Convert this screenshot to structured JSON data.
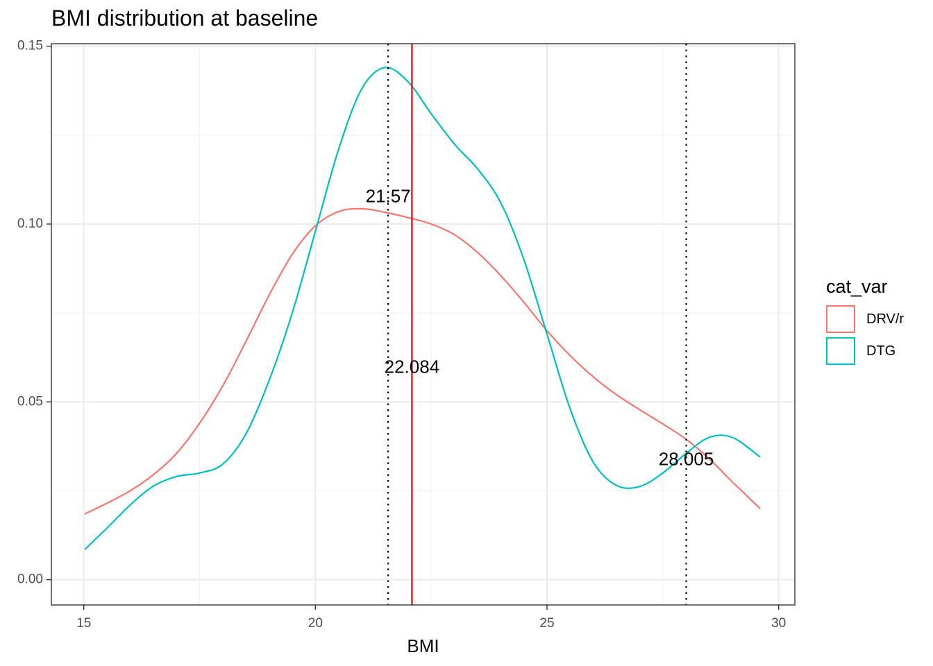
{
  "chart_data": {
    "type": "line",
    "title": "BMI distribution at baseline",
    "xlabel": "BMI",
    "ylabel": "",
    "xlim": [
      14.3,
      30.35
    ],
    "ylim": [
      -0.0071,
      0.1507
    ],
    "x_ticks": [
      15,
      20,
      25,
      30
    ],
    "x_tick_labels": [
      "15",
      "20",
      "25",
      "30"
    ],
    "y_ticks": [
      0.0,
      0.05,
      0.1,
      0.15
    ],
    "y_tick_labels": [
      "0.00",
      "0.05",
      "0.10",
      "0.15"
    ],
    "grid": true,
    "legend": {
      "title": "cat_var",
      "position": "right"
    },
    "series": [
      {
        "name": "DRV/r",
        "color": "#F8766D",
        "points": [
          [
            15.02,
            0.0185
          ],
          [
            15.5,
            0.0215
          ],
          [
            16,
            0.025
          ],
          [
            16.5,
            0.0295
          ],
          [
            17,
            0.0355
          ],
          [
            17.5,
            0.044
          ],
          [
            18,
            0.0545
          ],
          [
            18.5,
            0.067
          ],
          [
            19,
            0.08
          ],
          [
            19.5,
            0.0915
          ],
          [
            20,
            0.0995
          ],
          [
            20.5,
            0.1035
          ],
          [
            21,
            0.1043
          ],
          [
            21.5,
            0.1033
          ],
          [
            22,
            0.1018
          ],
          [
            22.5,
            0.1
          ],
          [
            23,
            0.097
          ],
          [
            23.5,
            0.092
          ],
          [
            24,
            0.0855
          ],
          [
            24.5,
            0.078
          ],
          [
            25,
            0.07
          ],
          [
            25.5,
            0.063
          ],
          [
            26,
            0.057
          ],
          [
            26.5,
            0.052
          ],
          [
            27,
            0.0478
          ],
          [
            27.5,
            0.0438
          ],
          [
            28,
            0.0395
          ],
          [
            28.5,
            0.034
          ],
          [
            29,
            0.0275
          ],
          [
            29.6,
            0.02
          ]
        ]
      },
      {
        "name": "DTG",
        "color": "#00BFC4",
        "points": [
          [
            15.02,
            0.0085
          ],
          [
            15.5,
            0.0145
          ],
          [
            16,
            0.021
          ],
          [
            16.5,
            0.0263
          ],
          [
            17,
            0.029
          ],
          [
            17.5,
            0.03
          ],
          [
            18,
            0.0325
          ],
          [
            18.5,
            0.041
          ],
          [
            19,
            0.056
          ],
          [
            19.5,
            0.075
          ],
          [
            20,
            0.098
          ],
          [
            20.5,
            0.121
          ],
          [
            21,
            0.138
          ],
          [
            21.5,
            0.144
          ],
          [
            22,
            0.14
          ],
          [
            22.5,
            0.131
          ],
          [
            23,
            0.1225
          ],
          [
            23.5,
            0.1155
          ],
          [
            24,
            0.106
          ],
          [
            24.5,
            0.09
          ],
          [
            25,
            0.069
          ],
          [
            25.5,
            0.048
          ],
          [
            26,
            0.033
          ],
          [
            26.5,
            0.0265
          ],
          [
            27,
            0.0262
          ],
          [
            27.5,
            0.03
          ],
          [
            28,
            0.0355
          ],
          [
            28.5,
            0.04
          ],
          [
            29,
            0.04
          ],
          [
            29.6,
            0.0345
          ]
        ]
      }
    ],
    "reference_lines": [
      {
        "x": 21.57,
        "style": "dotted",
        "color": "#000000",
        "label": "21.57",
        "label_y": 0.1075
      },
      {
        "x": 22.084,
        "style": "solid",
        "color": "#E41A1C",
        "label": "22.084",
        "label_y": 0.0595
      },
      {
        "x": 28.005,
        "style": "dotted",
        "color": "#000000",
        "label": "28.005",
        "label_y": 0.0335
      }
    ]
  }
}
